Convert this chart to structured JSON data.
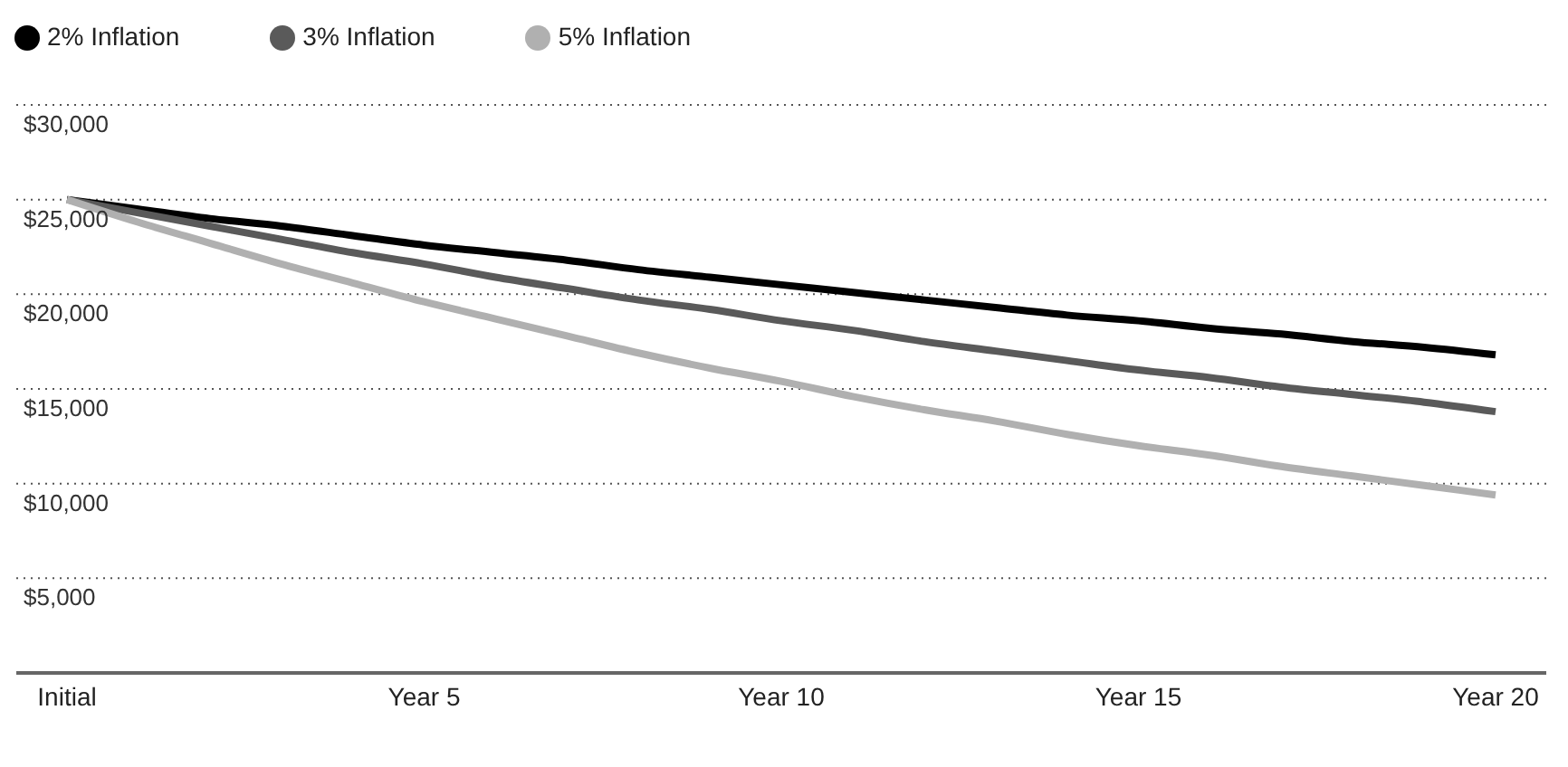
{
  "chart_data": {
    "type": "line",
    "categories": [
      "Initial",
      null,
      null,
      null,
      null,
      "Year 5",
      null,
      null,
      null,
      null,
      "Year 10",
      null,
      null,
      null,
      null,
      "Year 15",
      null,
      null,
      null,
      null,
      "Year 20"
    ],
    "series": [
      {
        "name": "2% Inflation",
        "color": "#000000",
        "values": [
          25000,
          24500,
          24000,
          23600,
          23100,
          22600,
          22200,
          21800,
          21300,
          20900,
          20500,
          20100,
          19700,
          19300,
          18900,
          18600,
          18200,
          17900,
          17500,
          17200,
          16800
        ]
      },
      {
        "name": "3% Inflation",
        "color": "#5a5a5a",
        "values": [
          25000,
          24300,
          23600,
          22900,
          22200,
          21600,
          20900,
          20300,
          19700,
          19200,
          18600,
          18100,
          17500,
          17000,
          16500,
          16000,
          15600,
          15100,
          14700,
          14300,
          13800
        ]
      },
      {
        "name": "5% Inflation",
        "color": "#b0b0b0",
        "values": [
          25000,
          23800,
          22700,
          21600,
          20600,
          19600,
          18700,
          17800,
          16900,
          16100,
          15400,
          14600,
          13900,
          13300,
          12600,
          12000,
          11500,
          10900,
          10400,
          9900,
          9400
        ]
      }
    ],
    "ylim": [
      0,
      30000
    ],
    "yticks": [
      {
        "value": 5000,
        "label": "$5,000"
      },
      {
        "value": 10000,
        "label": "$10,000"
      },
      {
        "value": 15000,
        "label": "$15,000"
      },
      {
        "value": 20000,
        "label": "$20,000"
      },
      {
        "value": 25000,
        "label": "$25,000"
      },
      {
        "value": 30000,
        "label": "$30,000"
      }
    ],
    "grid": "y",
    "legend": "top left",
    "line_style": "solid"
  }
}
